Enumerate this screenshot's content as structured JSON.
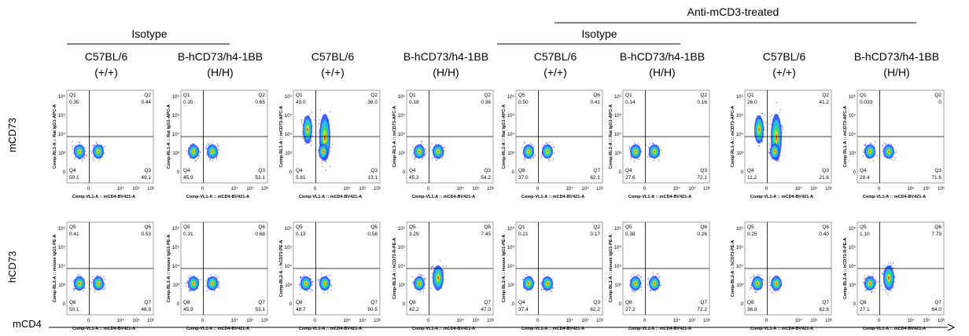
{
  "header": {
    "group_title": "Anti-mCD3-treated",
    "isotype_left": "Isotype",
    "isotype_right": "Isotype"
  },
  "columns": [
    {
      "strain": "C57BL/6",
      "genotype": "(+/+)"
    },
    {
      "strain": "B-hCD73/h4-1BB",
      "genotype": "(H/H)"
    },
    {
      "strain": "C57BL/6",
      "genotype": "(+/+)"
    },
    {
      "strain": "B-hCD73/h4-1BB",
      "genotype": "(H/H)"
    },
    {
      "strain": "C57BL/6",
      "genotype": "(+/+)"
    },
    {
      "strain": "B-hCD73/h4-1BB",
      "genotype": "(H/H)"
    },
    {
      "strain": "C57BL/6",
      "genotype": "(+/+)"
    },
    {
      "strain": "B-hCD73/h4-1BB",
      "genotype": "(H/H)"
    }
  ],
  "row_labels": [
    "mCD73",
    "hCD73"
  ],
  "x_axis_label": "mCD4",
  "axis_ticks": {
    "x": [
      "0",
      "10⁴",
      "10⁵",
      "10⁶"
    ],
    "y": [
      "10⁶",
      "10⁵",
      "10⁴",
      "10³",
      "0"
    ]
  },
  "panels": [
    [
      {
        "y_axis": "Comp-RL1-A :: Rat IgG1-APC-A",
        "x_axis": "Comp-VL1-A :: mCD4-BV421-A",
        "quadrants": [
          [
            "Q1",
            "0.35"
          ],
          [
            "Q2",
            "0.44"
          ],
          [
            "Q4",
            "50.1"
          ],
          [
            "Q3",
            "49.1"
          ]
        ]
      },
      {
        "y_axis": "Comp-RL1-A :: Rat IgG1-APC-A",
        "x_axis": "Comp-VL1-A :: mCD4-BV421-A",
        "quadrants": [
          [
            "Q1",
            "0.35"
          ],
          [
            "Q2",
            "0.65"
          ],
          [
            "Q4",
            "45.9"
          ],
          [
            "Q3",
            "53.1"
          ]
        ]
      },
      {
        "y_axis": "Comp-RL1-A :: mCD73-APC-A",
        "x_axis": "Comp-VL1-A :: mCD4-BV421-A",
        "quadrants": [
          [
            "Q1",
            "43.0"
          ],
          [
            "Q2",
            "38.0"
          ],
          [
            "Q4",
            "5.81"
          ],
          [
            "Q3",
            "13.1"
          ]
        ]
      },
      {
        "y_axis": "Comp-RL1-A :: mCD73-APC-A",
        "x_axis": "Comp-VL1-A :: mCD4-BV421-A",
        "quadrants": [
          [
            "Q1",
            "0.18"
          ],
          [
            "Q2",
            "0.36"
          ],
          [
            "Q4",
            "45.3"
          ],
          [
            "Q3",
            "54.2"
          ]
        ]
      },
      {
        "y_axis": "Comp-RL1-A :: Rat IgG1-APC-A",
        "x_axis": "Comp-VL1-A :: mCD4-BV421-A",
        "quadrants": [
          [
            "Q5",
            "0.50"
          ],
          [
            "Q6",
            "0.41"
          ],
          [
            "Q8",
            "37.0"
          ],
          [
            "Q7",
            "62.1"
          ]
        ]
      },
      {
        "y_axis": "Comp-RL1-A :: Rat IgG1-APC-A",
        "x_axis": "Comp-VL1-A :: mCD4-BV421-A",
        "quadrants": [
          [
            "Q1",
            "0.14"
          ],
          [
            "Q2",
            "0.16"
          ],
          [
            "Q4",
            "27.6"
          ],
          [
            "Q3",
            "72.1"
          ]
        ]
      },
      {
        "y_axis": "Comp-RL1-A :: mCD73-APC-A",
        "x_axis": "Comp-VL1-A :: mCD4-BV421-A",
        "quadrants": [
          [
            "Q1",
            "26.0"
          ],
          [
            "Q2",
            "41.2"
          ],
          [
            "Q4",
            "11.2"
          ],
          [
            "Q3",
            "21.6"
          ]
        ]
      },
      {
        "y_axis": "Comp-RL1-A :: mCD73-APC-A",
        "x_axis": "Comp-VL1-A :: mCD4-BV421-A",
        "quadrants": [
          [
            "Q1",
            "0.033"
          ],
          [
            "Q2",
            "0"
          ],
          [
            "Q4",
            "28.4"
          ],
          [
            "Q3",
            "71.6"
          ]
        ]
      }
    ],
    [
      {
        "y_axis": "Comp-BL2-A :: mouse IgG1-PE-A",
        "x_axis": "Comp-VL1-A :: mCD4-BV421-A",
        "quadrants": [
          [
            "Q5",
            "0.41"
          ],
          [
            "Q6",
            "0.53"
          ],
          [
            "Q8",
            "50.1"
          ],
          [
            "Q7",
            "48.9"
          ]
        ]
      },
      {
        "y_axis": "Comp-BL2-A :: mouse IgG1-PE-A",
        "x_axis": "Comp-VL1-A :: mCD4-BV421-A",
        "quadrants": [
          [
            "Q5",
            "0.31"
          ],
          [
            "Q6",
            "0.68"
          ],
          [
            "Q8",
            "45.9"
          ],
          [
            "Q7",
            "53.1"
          ]
        ]
      },
      {
        "y_axis": "Comp-BL2-A :: hCD73-PE-A",
        "x_axis": "Comp-VL1-A :: mCD4-BV421-A",
        "quadrants": [
          [
            "Q5",
            "0.13"
          ],
          [
            "Q6",
            "0.58"
          ],
          [
            "Q8",
            "48.7"
          ],
          [
            "Q7",
            "50.5"
          ]
        ]
      },
      {
        "y_axis": "Comp-BL2-A :: hCD73-R-PE-A",
        "x_axis": "Comp-VL1-A :: mCD4-BV421-A",
        "quadrants": [
          [
            "Q5",
            "3.29"
          ],
          [
            "Q6",
            "7.45"
          ],
          [
            "Q8",
            "42.2"
          ],
          [
            "Q7",
            "47.0"
          ]
        ]
      },
      {
        "y_axis": "Comp-BL2-A :: mouse IgG1-PE-A",
        "x_axis": "Comp-VL1-A :: mCD4-BV421-A",
        "quadrants": [
          [
            "Q1",
            "0.21"
          ],
          [
            "Q2",
            "0.17"
          ],
          [
            "Q4",
            "37.4"
          ],
          [
            "Q3",
            "62.2"
          ]
        ]
      },
      {
        "y_axis": "Comp-BL2-A :: mouse IgG1-PE-A",
        "x_axis": "Comp-VL1-A :: mCD4-BV421-A",
        "quadrants": [
          [
            "Q5",
            "0.38"
          ],
          [
            "Q6",
            "0.26"
          ],
          [
            "Q8",
            "27.2"
          ],
          [
            "Q7",
            "72.2"
          ]
        ]
      },
      {
        "y_axis": "Comp-BL2-A :: hCD73-PE-A",
        "x_axis": "Comp-VL1-A :: mCD4-BV421-A",
        "quadrants": [
          [
            "Q5",
            "0.25"
          ],
          [
            "Q6",
            "0.40"
          ],
          [
            "Q8",
            "36.8"
          ],
          [
            "Q7",
            "62.6"
          ]
        ]
      },
      {
        "y_axis": "Comp-BL2-A :: hCD73-R-PE-A",
        "x_axis": "Comp-VL1-A :: mCD4-BV421-A",
        "quadrants": [
          [
            "Q5",
            "1.10"
          ],
          [
            "Q6",
            "7.79"
          ],
          [
            "Q8",
            "27.1"
          ],
          [
            "Q7",
            "64.0"
          ]
        ]
      }
    ]
  ]
}
